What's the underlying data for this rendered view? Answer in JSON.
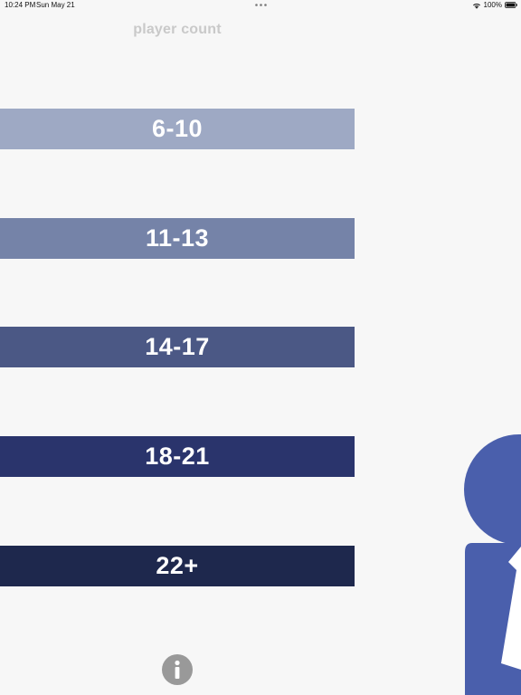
{
  "status_bar": {
    "time": "10:24 PM",
    "date": "Sun May 21",
    "battery": "100%"
  },
  "page": {
    "title": "player count"
  },
  "options": [
    {
      "label": "6-10"
    },
    {
      "label": "11-13"
    },
    {
      "label": "14-17"
    },
    {
      "label": "18-21"
    },
    {
      "label": "22+"
    }
  ],
  "colors": {
    "background": "#f7f7f7",
    "title": "#c9c9c9",
    "option_1": "#9ea9c4",
    "option_2": "#7583a8",
    "option_3": "#4b5885",
    "option_4": "#2a346c",
    "option_5": "#1e284d",
    "figure": "#4a5fac",
    "info_button": "#999999"
  },
  "icons": {
    "info": "info-icon",
    "figure": "player-figure-icon",
    "wifi": "wifi-icon",
    "battery": "battery-icon"
  }
}
